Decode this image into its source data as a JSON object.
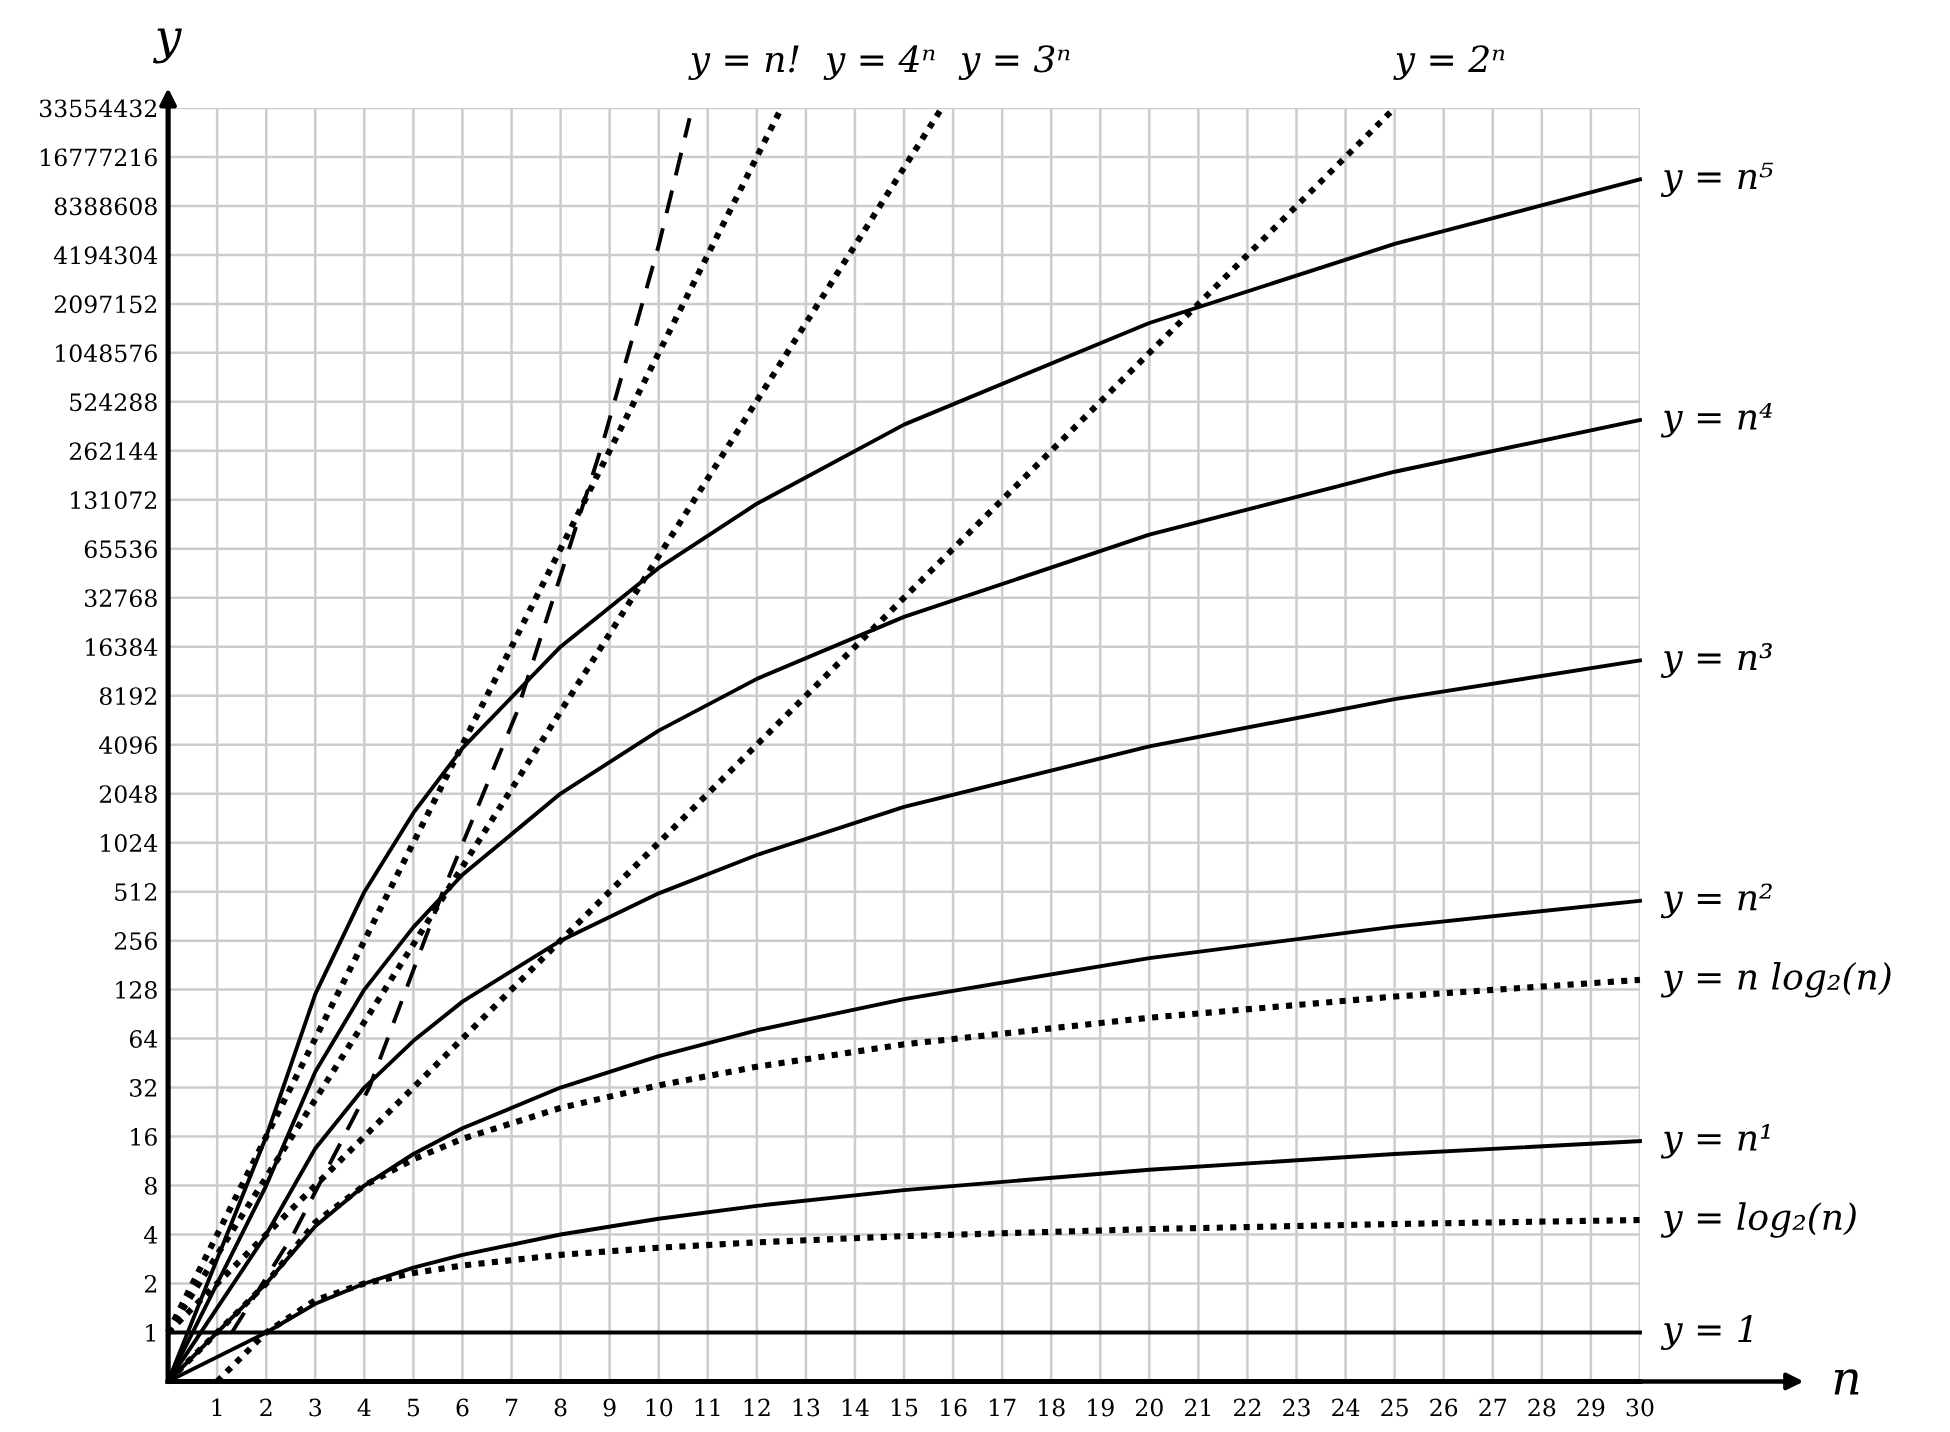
{
  "chart_data": {
    "type": "line",
    "xlabel": "n",
    "ylabel": "y",
    "log": "y",
    "grid": true,
    "legend": false,
    "marker": "none",
    "xlim": [
      0,
      30
    ],
    "xticks": [
      1,
      2,
      3,
      4,
      5,
      6,
      7,
      8,
      9,
      10,
      11,
      12,
      13,
      14,
      15,
      16,
      17,
      18,
      19,
      20,
      21,
      22,
      23,
      24,
      25,
      26,
      27,
      28,
      29,
      30
    ],
    "ylim": [
      0.5,
      33554432
    ],
    "yticks": [
      1,
      2,
      4,
      8,
      16,
      32,
      64,
      128,
      256,
      512,
      1024,
      2048,
      4096,
      8192,
      16384,
      32768,
      65536,
      131072,
      262144,
      524288,
      1048576,
      2097152,
      4194304,
      8388608,
      16777216,
      33554432
    ],
    "series": [
      {
        "name": "y = n!",
        "color": "#000000",
        "line_style": "dashed",
        "x": [
          1.3,
          2.55,
          4.1,
          5.6,
          7.1,
          7.98,
          8.87,
          10,
          10.63
        ],
        "values": [
          1,
          4,
          32,
          512,
          6400,
          43000,
          300000,
          4800000,
          29000000
        ]
      },
      {
        "name": "y = 4ⁿ",
        "color": "#000000",
        "line_style": "dotted",
        "x": [
          0,
          5,
          10,
          12.5
        ],
        "values": [
          1,
          1024,
          1048576,
          33554432
        ]
      },
      {
        "name": "y = 3ⁿ",
        "color": "#000000",
        "line_style": "dotted",
        "x": [
          0,
          5,
          10,
          15.77
        ],
        "values": [
          1,
          243,
          59049,
          33554432
        ]
      },
      {
        "name": "y = 2ⁿ",
        "color": "#000000",
        "line_style": "dotted",
        "x": [
          0,
          5,
          10,
          15,
          20,
          25
        ],
        "values": [
          1,
          32,
          1024,
          32768,
          1048576,
          33554432
        ]
      },
      {
        "name": "y = n⁵",
        "color": "#000000",
        "line_style": "solid",
        "x": [
          0,
          2,
          3,
          4,
          5,
          6,
          8,
          10,
          12,
          15,
          20,
          25,
          30
        ],
        "values": [
          0.5,
          16,
          120,
          510,
          1560,
          3900,
          16400,
          50000,
          124000,
          380000,
          1600000,
          4900000,
          12200000
        ]
      },
      {
        "name": "y = n⁴",
        "color": "#000000",
        "line_style": "solid",
        "x": [
          0,
          2,
          3,
          4,
          5,
          6,
          8,
          10,
          12,
          15,
          20,
          25,
          30
        ],
        "values": [
          0.5,
          8,
          40,
          128,
          310,
          650,
          2050,
          5000,
          10400,
          25000,
          80000,
          195000,
          405000
        ]
      },
      {
        "name": "y = n³",
        "color": "#000000",
        "line_style": "solid",
        "x": [
          0,
          2,
          3,
          4,
          5,
          6,
          8,
          10,
          12,
          15,
          20,
          25,
          30
        ],
        "values": [
          0.5,
          4,
          13.5,
          32,
          62,
          108,
          256,
          500,
          860,
          1700,
          4000,
          7800,
          13500
        ]
      },
      {
        "name": "y = n²",
        "color": "#000000",
        "line_style": "solid",
        "x": [
          0,
          2,
          3,
          4,
          5,
          6,
          8,
          10,
          12,
          15,
          20,
          25,
          30
        ],
        "values": [
          0.5,
          2,
          4.5,
          8,
          12.5,
          18,
          32,
          50,
          72,
          112,
          200,
          312,
          450
        ]
      },
      {
        "name": "y = n log₂(n)",
        "color": "#000000",
        "line_style": "dotted",
        "x": [
          0,
          2,
          3,
          4,
          5,
          6,
          8,
          10,
          12,
          15,
          20,
          25,
          30
        ],
        "values": [
          0.5,
          2,
          4.75,
          8,
          11.6,
          15.5,
          24,
          33,
          43,
          59,
          86,
          116,
          147
        ]
      },
      {
        "name": "y = n¹",
        "color": "#000000",
        "line_style": "solid",
        "x": [
          0,
          2,
          3,
          4,
          5,
          6,
          8,
          10,
          12,
          15,
          20,
          25,
          30
        ],
        "values": [
          0.5,
          1,
          1.5,
          2,
          2.5,
          3,
          4,
          5,
          6,
          7.5,
          10,
          12.5,
          15
        ]
      },
      {
        "name": "y = log₂(n)",
        "color": "#000000",
        "line_style": "dotted",
        "x": [
          1,
          2,
          3,
          4,
          5,
          6,
          8,
          10,
          12,
          15,
          20,
          25,
          30
        ],
        "values": [
          0.5,
          1,
          1.58,
          2,
          2.32,
          2.58,
          3,
          3.32,
          3.58,
          3.91,
          4.32,
          4.64,
          4.91
        ]
      },
      {
        "name": "y = 1",
        "color": "#000000",
        "line_style": "solid",
        "x": [
          0,
          30
        ],
        "values": [
          1,
          1
        ]
      }
    ]
  }
}
